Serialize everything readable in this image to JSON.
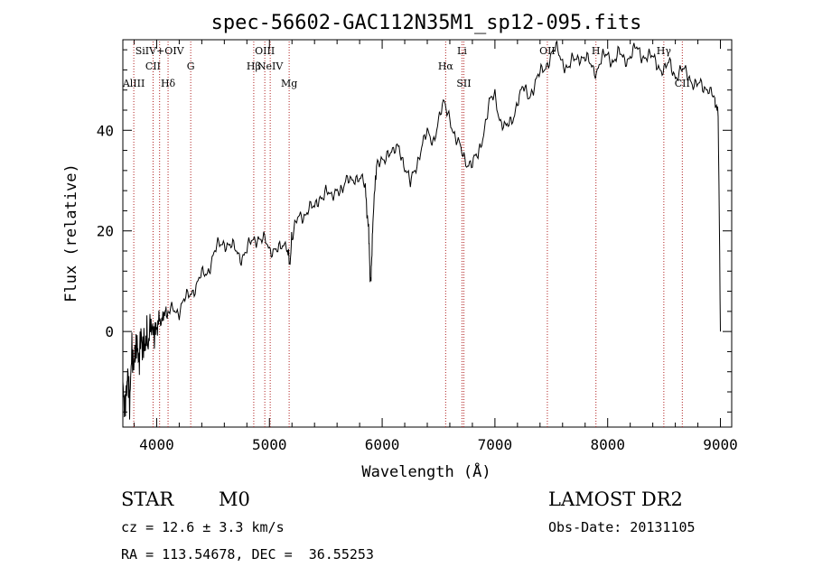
{
  "chart_data": {
    "type": "line",
    "title": "spec-56602-GAC112N35M1_sp12-095.fits",
    "xlabel": "Wavelength (Å)",
    "ylabel": "Flux (relative)",
    "xlim": [
      3700,
      9100
    ],
    "ylim": [
      -19,
      58
    ],
    "x_ticks": [
      4000,
      5000,
      6000,
      7000,
      8000,
      9000
    ],
    "y_ticks": [
      0,
      20,
      40
    ],
    "grid": false,
    "legend": "none",
    "series": [
      {
        "points": [
          [
            3700,
            -10
          ],
          [
            3720,
            -16
          ],
          [
            3740,
            -8
          ],
          [
            3760,
            -14
          ],
          [
            3780,
            -4
          ],
          [
            3800,
            -7
          ],
          [
            3820,
            -2
          ],
          [
            3840,
            -6
          ],
          [
            3860,
            -1
          ],
          [
            3880,
            -3
          ],
          [
            3900,
            -2
          ],
          [
            3920,
            -1
          ],
          [
            3950,
            0
          ],
          [
            3980,
            1
          ],
          [
            4000,
            0
          ],
          [
            4020,
            3
          ],
          [
            4050,
            2
          ],
          [
            4080,
            4
          ],
          [
            4100,
            3
          ],
          [
            4150,
            5
          ],
          [
            4200,
            4
          ],
          [
            4250,
            6
          ],
          [
            4300,
            8
          ],
          [
            4350,
            9
          ],
          [
            4400,
            11
          ],
          [
            4450,
            12
          ],
          [
            4500,
            15
          ],
          [
            4550,
            17
          ],
          [
            4600,
            18
          ],
          [
            4650,
            17
          ],
          [
            4700,
            16
          ],
          [
            4750,
            15
          ],
          [
            4800,
            16
          ],
          [
            4850,
            18
          ],
          [
            4900,
            19
          ],
          [
            4950,
            18
          ],
          [
            5000,
            16
          ],
          [
            5050,
            17
          ],
          [
            5100,
            16
          ],
          [
            5150,
            17
          ],
          [
            5180,
            13
          ],
          [
            5200,
            19
          ],
          [
            5250,
            22
          ],
          [
            5300,
            23
          ],
          [
            5350,
            25
          ],
          [
            5400,
            24
          ],
          [
            5450,
            27
          ],
          [
            5500,
            28
          ],
          [
            5550,
            26
          ],
          [
            5600,
            29
          ],
          [
            5650,
            28
          ],
          [
            5700,
            30
          ],
          [
            5750,
            31
          ],
          [
            5800,
            30
          ],
          [
            5850,
            29
          ],
          [
            5880,
            20
          ],
          [
            5895,
            10
          ],
          [
            5905,
            12
          ],
          [
            5920,
            24
          ],
          [
            5950,
            32
          ],
          [
            6000,
            34
          ],
          [
            6050,
            36
          ],
          [
            6100,
            35
          ],
          [
            6150,
            37
          ],
          [
            6200,
            33
          ],
          [
            6250,
            29
          ],
          [
            6300,
            33
          ],
          [
            6350,
            37
          ],
          [
            6400,
            39
          ],
          [
            6450,
            38
          ],
          [
            6500,
            42
          ],
          [
            6550,
            45
          ],
          [
            6600,
            43
          ],
          [
            6650,
            38
          ],
          [
            6700,
            36
          ],
          [
            6750,
            34
          ],
          [
            6800,
            33
          ],
          [
            6850,
            35
          ],
          [
            6900,
            40
          ],
          [
            6950,
            45
          ],
          [
            7000,
            47
          ],
          [
            7050,
            42
          ],
          [
            7100,
            40
          ],
          [
            7150,
            42
          ],
          [
            7200,
            46
          ],
          [
            7250,
            48
          ],
          [
            7300,
            47
          ],
          [
            7350,
            49
          ],
          [
            7400,
            51
          ],
          [
            7450,
            53
          ],
          [
            7500,
            55
          ],
          [
            7550,
            56
          ],
          [
            7600,
            54
          ],
          [
            7650,
            52
          ],
          [
            7700,
            54
          ],
          [
            7750,
            55
          ],
          [
            7800,
            54
          ],
          [
            7850,
            53
          ],
          [
            7900,
            52
          ],
          [
            7950,
            54
          ],
          [
            8000,
            55
          ],
          [
            8050,
            54
          ],
          [
            8100,
            55
          ],
          [
            8150,
            54
          ],
          [
            8200,
            55
          ],
          [
            8250,
            56
          ],
          [
            8300,
            55
          ],
          [
            8350,
            55
          ],
          [
            8400,
            54
          ],
          [
            8450,
            53
          ],
          [
            8500,
            52
          ],
          [
            8550,
            53
          ],
          [
            8600,
            51
          ],
          [
            8650,
            52
          ],
          [
            8700,
            51
          ],
          [
            8750,
            50
          ],
          [
            8800,
            49
          ],
          [
            8850,
            48
          ],
          [
            8900,
            49
          ],
          [
            8950,
            46
          ],
          [
            8980,
            44
          ],
          [
            9000,
            0
          ]
        ]
      }
    ],
    "lines": [
      {
        "x": 3797,
        "label": "AlIII",
        "row": 1
      },
      {
        "x": 3968,
        "label": "CII",
        "row": 0
      },
      {
        "x": 4101,
        "label": "Hδ",
        "row": 1
      },
      {
        "x": 4026,
        "label": "SiIV+OIV",
        "row": -1
      },
      {
        "x": 4302,
        "label": "G",
        "row": 0
      },
      {
        "x": 4861,
        "label": "Hβ",
        "row": 0
      },
      {
        "x": 4959,
        "label": "OIII",
        "row": -1
      },
      {
        "x": 5007,
        "label": "NeIV",
        "row": 0
      },
      {
        "x": 5175,
        "label": "Mg",
        "row": 1
      },
      {
        "x": 6563,
        "label": "Hα",
        "row": 0
      },
      {
        "x": 6708,
        "label": "Li",
        "row": -1
      },
      {
        "x": 6724,
        "label": "SII",
        "row": 1
      },
      {
        "x": 7465,
        "label": "OII",
        "row": -1
      },
      {
        "x": 7896,
        "label": "H",
        "row": -1
      },
      {
        "x": 8498,
        "label": "Hγ",
        "row": -1
      },
      {
        "x": 8662,
        "label": "CII",
        "row": 1
      }
    ]
  },
  "info": {
    "object_type": "STAR",
    "subclass": "M0",
    "survey": "LAMOST DR2",
    "cz": "cz = 12.6 ± 3.3 km/s",
    "obs_date": "Obs-Date: 20131105",
    "coords": "RA = 113.54678, DEC =  36.55253"
  }
}
